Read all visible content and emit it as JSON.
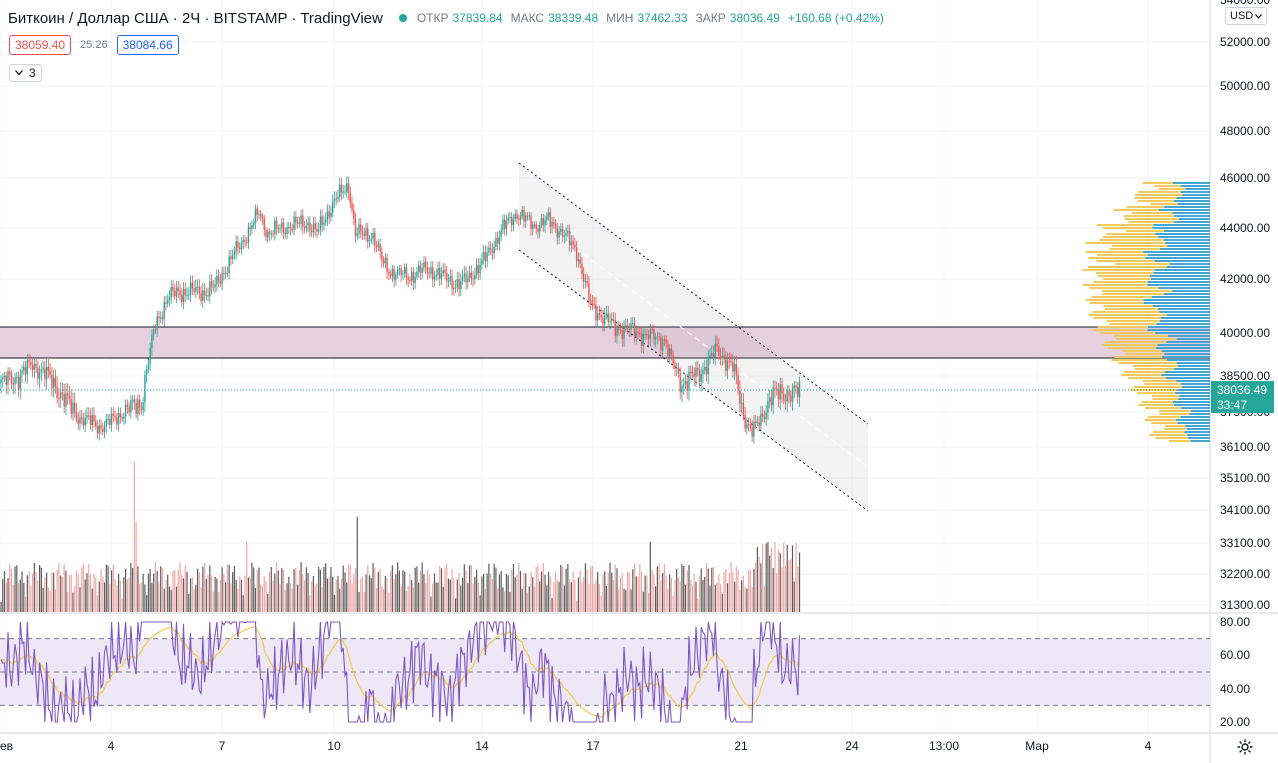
{
  "legend": {
    "symbol": "Биткоин / Доллар США · 2Ч · BITSTAMP · TradingView",
    "open_label": "ОТКР",
    "open": "37839.84",
    "high_label": "МАКС",
    "high": "38339.48",
    "low_label": "МИН",
    "low": "37462.33",
    "close_label": "ЗАКР",
    "close": "38036.49",
    "change": "+160.68 (+0.42%)"
  },
  "quotes": {
    "bid": "38059.40",
    "spread": "25.26",
    "ask": "38084.66"
  },
  "indicators_toggle": {
    "count": "3"
  },
  "currency": "USD",
  "last_price": {
    "price": "38036.49",
    "countdown": "33:47"
  },
  "price_axis": [
    "54000.00",
    "52000.00",
    "50000.00",
    "48000.00",
    "46000.00",
    "44000.00",
    "42000.00",
    "40000.00",
    "38500.00",
    "37500.00",
    "36100.00",
    "35100.00",
    "34100.00",
    "33100.00",
    "32200.00",
    "31300.00"
  ],
  "rsi_axis": [
    "80.00",
    "60.00",
    "40.00",
    "20.00"
  ],
  "time_axis": [
    "ев",
    "4",
    "7",
    "10",
    "14",
    "17",
    "21",
    "24",
    "13:00",
    "Мар",
    "4"
  ],
  "colors": {
    "up": "#26a69a",
    "down": "#ef5350",
    "zone": "#e2c8d8",
    "rsi_line": "#7e57c2",
    "rsi_ma": "#f2c94c",
    "rsi_band": "#ede7f6",
    "vp_up": "#42a5d5",
    "vp_down": "#f3c95a",
    "volume_up": "#5d5d5d",
    "volume_down": "#f0a8a6"
  },
  "chart_data": {
    "type": "candlestick",
    "series_anchors": {
      "x_index": [
        0,
        10,
        18,
        25,
        30,
        40,
        45,
        52,
        56,
        60,
        70,
        80,
        88,
        95,
        100,
        110,
        115,
        122,
        132,
        137,
        147,
        152,
        165,
        175,
        180,
        190,
        198,
        202,
        212,
        217,
        222,
        232,
        242,
        249,
        260,
        266,
        276,
        286,
        294,
        304,
        312,
        320,
        328,
        336,
        350,
        360,
        368,
        378,
        382,
        388,
        398,
        408,
        417,
        424,
        428,
        432,
        438,
        446,
        456,
        459
      ],
      "close": [
        38300,
        38500,
        38900,
        38600,
        38300,
        37600,
        37250,
        37100,
        36900,
        37000,
        37500,
        37750,
        40300,
        41300,
        41500,
        41550,
        41500,
        41700,
        42900,
        43400,
        44600,
        43800,
        44100,
        44200,
        43800,
        45100,
        45700,
        43800,
        43700,
        42700,
        42300,
        42100,
        42400,
        42200,
        41800,
        42000,
        42800,
        44000,
        44600,
        44100,
        44300,
        43800,
        43100,
        41000,
        40200,
        40100,
        39900,
        39800,
        39000,
        38300,
        38600,
        39400,
        38800,
        37200,
        36700,
        37100,
        37900,
        38036,
        38036,
        38036
      ]
    },
    "volume_profile": "visible-range",
    "support_zone": {
      "top": 40300,
      "bottom": 39000
    },
    "channel": "descending parallel channel",
    "rsi": {
      "levels": [
        70,
        50,
        30
      ]
    },
    "ylim": [
      31300,
      54000
    ]
  }
}
